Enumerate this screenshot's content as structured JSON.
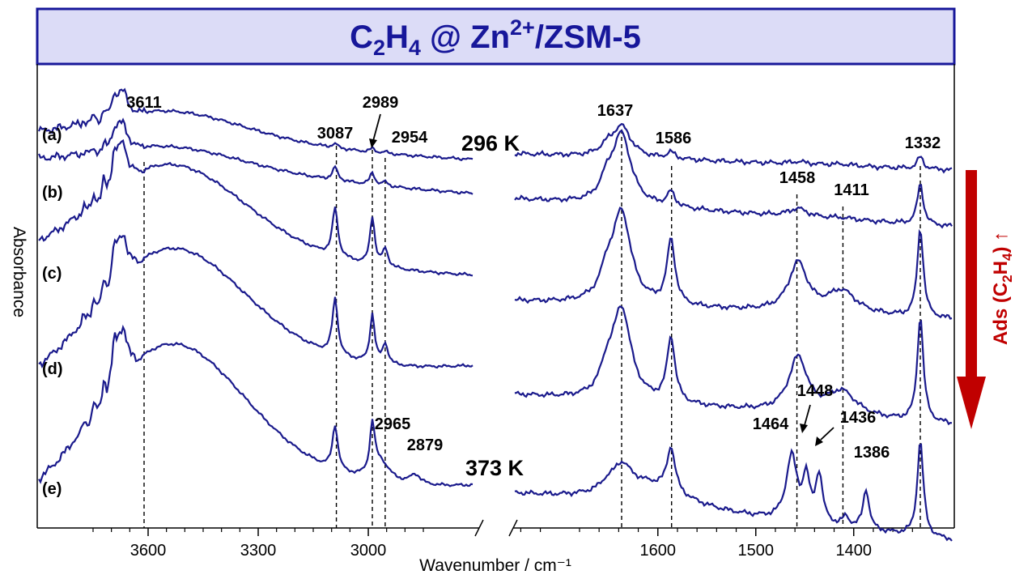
{
  "chart_data": {
    "type": "line",
    "title": "C₂H₄ @ Zn²⁺/ZSM-5",
    "title_parts": {
      "pre": "C",
      "sub1": "2",
      "mid": "H",
      "sub2": "4",
      "mid2": " @ Zn",
      "sup": "2+",
      "post": "/ZSM-5"
    },
    "xlabel": "Wavenumber / cm⁻¹",
    "ylabel": "Absorbance",
    "x_reversed": true,
    "broken_axis": true,
    "panels": [
      {
        "xlim": [
          3800,
          2800
        ],
        "ticks": [
          3600,
          3300,
          3000
        ]
      },
      {
        "xlim": [
          1750,
          1320
        ],
        "ticks": [
          1600,
          1500,
          1400
        ]
      }
    ],
    "series": [
      {
        "name": "(a)"
      },
      {
        "name": "(b)"
      },
      {
        "name": "(c)"
      },
      {
        "name": "(d)"
      },
      {
        "name": "(e)"
      }
    ],
    "peaks_left": [
      {
        "x": 3611,
        "label": "3611",
        "y": 0.0
      },
      {
        "x": 3087,
        "label": "3087",
        "y": 0.05
      },
      {
        "x": 2989,
        "label": "2989",
        "y": 0.16
      },
      {
        "x": 2954,
        "label": "2954",
        "y": 0.07
      },
      {
        "x": 2965,
        "label": "2965",
        "y": 0.32
      },
      {
        "x": 2879,
        "label": "2879",
        "y": 0.21
      }
    ],
    "peaks_right": [
      {
        "x": 1637,
        "label": "1637",
        "y": 0.86
      },
      {
        "x": 1586,
        "label": "1586",
        "y": 0.12
      },
      {
        "x": 1458,
        "label": "1458",
        "y": 0.35
      },
      {
        "x": 1411,
        "label": "1411",
        "y": 0.05
      },
      {
        "x": 1332,
        "label": "1332",
        "y": 0.08
      },
      {
        "x": 1464,
        "label": "1464",
        "y": 0.35
      },
      {
        "x": 1448,
        "label": "1448",
        "y": 0.05
      },
      {
        "x": 1436,
        "label": "1436",
        "y": 0.06
      },
      {
        "x": 1386,
        "label": "1386",
        "y": 0.07
      }
    ],
    "dashed_lines_left": [
      3611,
      3087,
      2989,
      2954
    ],
    "dashed_lines_right": [
      1637,
      1586,
      1458,
      1411,
      1332
    ],
    "temperatures": [
      "296 K",
      "373 K"
    ],
    "arrow_label": {
      "pre": "Ads (C",
      "sub1": "2",
      "mid": "H",
      "sub2": "4",
      "post": ")",
      "arrow": " ↑"
    },
    "colors": {
      "line": "#1a1a8c",
      "title_bg": "#dcdcf7",
      "title_border": "#17179a",
      "arrow": "#c00000"
    }
  }
}
